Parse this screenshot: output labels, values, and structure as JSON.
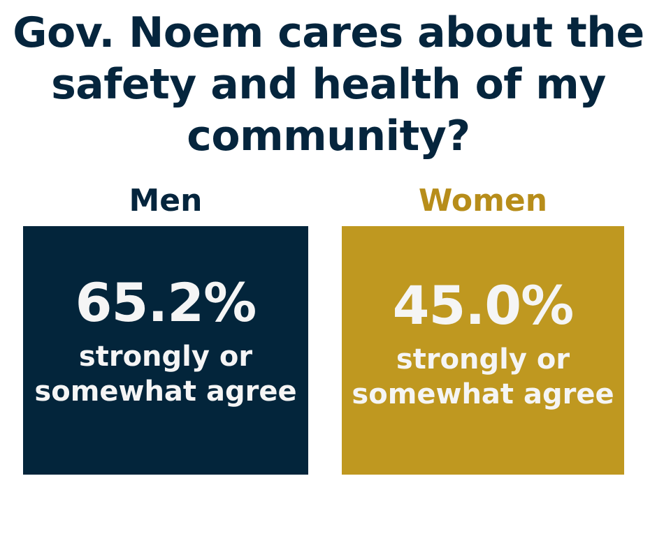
{
  "title": {
    "line1": "Gov. Noem cares about the",
    "line2": "safety and health of my",
    "line3": "community?"
  },
  "groups": [
    {
      "label": "Men",
      "value": "65.2%",
      "caption_line1": "strongly or",
      "caption_line2": "somewhat agree"
    },
    {
      "label": "Women",
      "value": "45.0%",
      "caption_line1": "strongly or",
      "caption_line2": "somewhat agree"
    }
  ],
  "colors": {
    "title": "#05253d",
    "men_label": "#05253d",
    "men_box": "#03253b",
    "women_label": "#b78d1a",
    "women_box": "#bf9820",
    "box_text": "#f5f5f5"
  }
}
